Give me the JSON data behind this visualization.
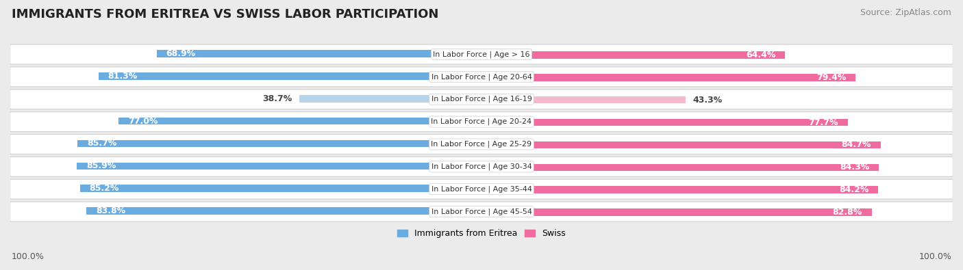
{
  "title": "IMMIGRANTS FROM ERITREA VS SWISS LABOR PARTICIPATION",
  "source": "Source: ZipAtlas.com",
  "categories": [
    "In Labor Force | Age > 16",
    "In Labor Force | Age 20-64",
    "In Labor Force | Age 16-19",
    "In Labor Force | Age 20-24",
    "In Labor Force | Age 25-29",
    "In Labor Force | Age 30-34",
    "In Labor Force | Age 35-44",
    "In Labor Force | Age 45-54"
  ],
  "eritrea_values": [
    68.9,
    81.3,
    38.7,
    77.0,
    85.7,
    85.9,
    85.2,
    83.8
  ],
  "swiss_values": [
    64.4,
    79.4,
    43.3,
    77.7,
    84.7,
    84.3,
    84.2,
    82.8
  ],
  "eritrea_color": "#6aabe0",
  "eritrea_color_light": "#b8d4ea",
  "swiss_color": "#f06ca0",
  "swiss_color_light": "#f5b8cc",
  "label_white": "#ffffff",
  "label_dark": "#444444",
  "bg_color": "#ebebeb",
  "row_bg_color": "#ffffff",
  "row_border_color": "#d0d0d0",
  "title_fontsize": 13,
  "source_fontsize": 9,
  "bar_label_fontsize": 9,
  "category_fontsize": 8,
  "legend_fontsize": 9,
  "footer_fontsize": 9
}
